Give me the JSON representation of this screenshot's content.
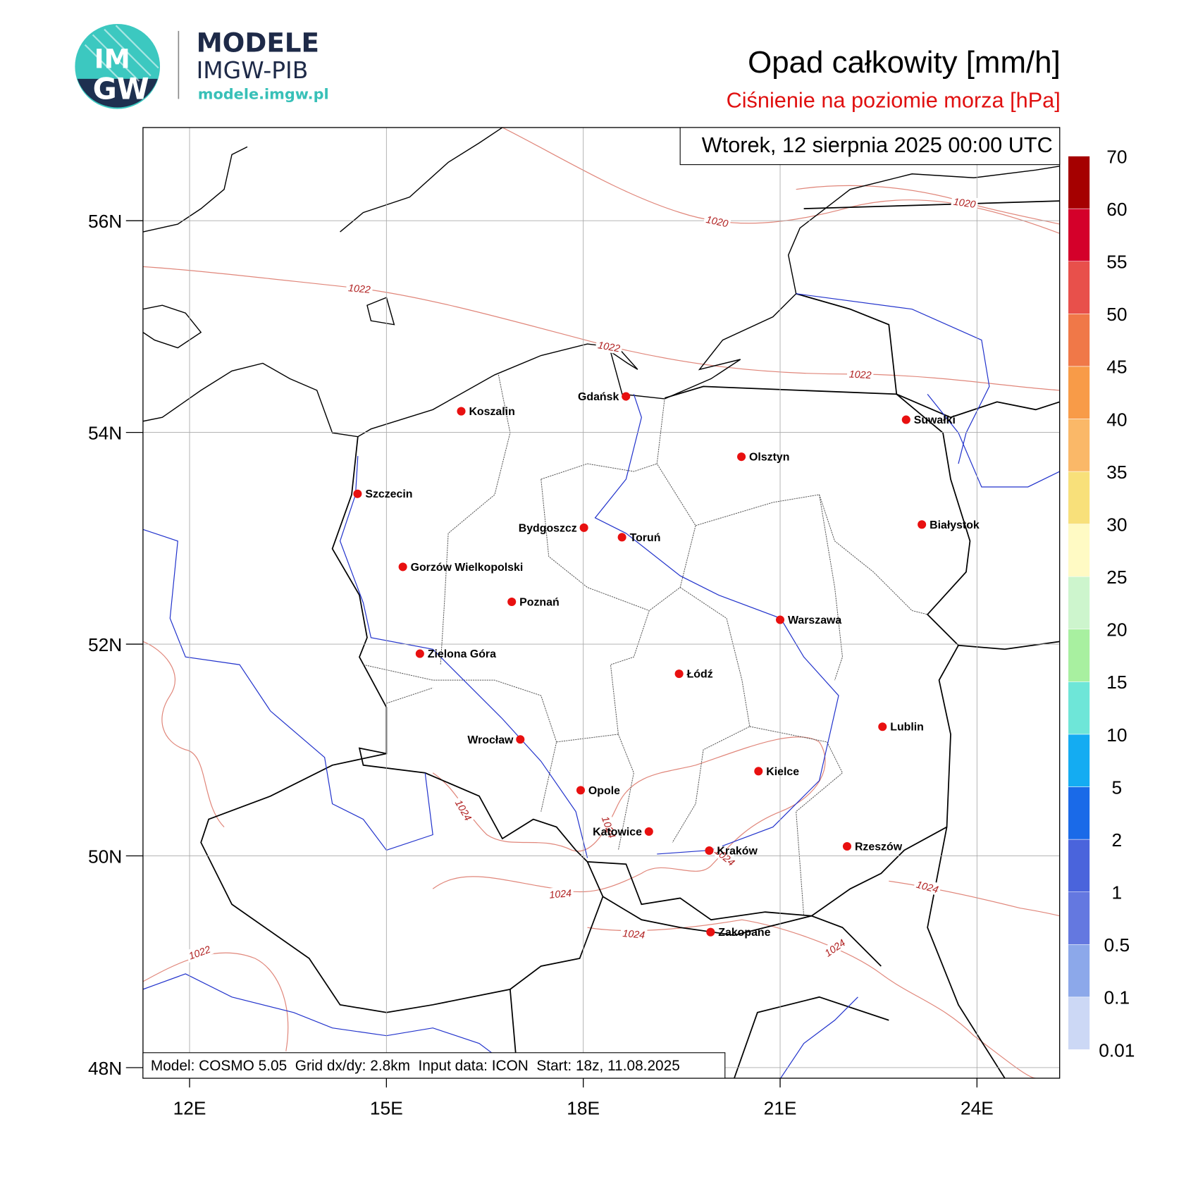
{
  "logo": {
    "badge_top": "IM",
    "badge_bottom": "GW",
    "name": "MODELE",
    "org": "IMGW-PIB",
    "url": "modele.imgw.pl"
  },
  "title": "Opad całkowity [mm/h]",
  "subtitle": "Ciśnienie na poziomie morza [hPa]",
  "valid_time": "Wtorek, 12 sierpnia 2025 00:00 UTC",
  "footer": "Model: COSMO 5.05  Grid dx/dy: 2.8km  Input data: ICON  Start: 18z, 11.08.2025",
  "map": {
    "xlim": [
      11.29,
      25.26
    ],
    "ylim": [
      47.9,
      56.88
    ],
    "xticks": [
      {
        "value": 12,
        "label": "12E"
      },
      {
        "value": 15,
        "label": "15E"
      },
      {
        "value": 18,
        "label": "18E"
      },
      {
        "value": 21,
        "label": "21E"
      },
      {
        "value": 24,
        "label": "24E"
      }
    ],
    "yticks": [
      {
        "value": 48,
        "label": "48N"
      },
      {
        "value": 50,
        "label": "50N"
      },
      {
        "value": 52,
        "label": "52N"
      },
      {
        "value": 54,
        "label": "54N"
      },
      {
        "value": 56,
        "label": "56N"
      }
    ],
    "grid": true
  },
  "cities": [
    {
      "name": "Gdańsk",
      "lon": 18.65,
      "lat": 54.34
    },
    {
      "name": "Koszalin",
      "lon": 16.14,
      "lat": 54.2
    },
    {
      "name": "Suwałki",
      "lon": 22.92,
      "lat": 54.12
    },
    {
      "name": "Olsztyn",
      "lon": 20.41,
      "lat": 53.77
    },
    {
      "name": "Szczecin",
      "lon": 14.56,
      "lat": 53.42
    },
    {
      "name": "Białystok",
      "lon": 23.16,
      "lat": 53.13
    },
    {
      "name": "Bydgoszcz",
      "lon": 18.01,
      "lat": 53.1
    },
    {
      "name": "Toruń",
      "lon": 18.59,
      "lat": 53.01
    },
    {
      "name": "Gorzów Wielkopolski",
      "lon": 15.25,
      "lat": 52.73
    },
    {
      "name": "Poznań",
      "lon": 16.91,
      "lat": 52.4
    },
    {
      "name": "Warszawa",
      "lon": 21.0,
      "lat": 52.23
    },
    {
      "name": "Zielona Góra",
      "lon": 15.51,
      "lat": 51.91
    },
    {
      "name": "Łódź",
      "lon": 19.46,
      "lat": 51.72
    },
    {
      "name": "Lublin",
      "lon": 22.56,
      "lat": 51.22
    },
    {
      "name": "Wrocław",
      "lon": 17.04,
      "lat": 51.1
    },
    {
      "name": "Kielce",
      "lon": 20.67,
      "lat": 50.8
    },
    {
      "name": "Opole",
      "lon": 17.96,
      "lat": 50.62
    },
    {
      "name": "Katowice",
      "lon": 19.0,
      "lat": 50.23
    },
    {
      "name": "Kraków",
      "lon": 19.92,
      "lat": 50.05
    },
    {
      "name": "Rzeszów",
      "lon": 22.02,
      "lat": 50.09
    },
    {
      "name": "Zakopane",
      "lon": 19.94,
      "lat": 49.28
    }
  ],
  "isobar_labels": [
    "1020",
    "1020",
    "1022",
    "1022",
    "1022",
    "1022",
    "1024",
    "1024",
    "1024",
    "1024",
    "1024",
    "1024",
    "1024"
  ],
  "colorbar": {
    "levels": [
      0.01,
      0.1,
      0.5,
      1,
      2,
      5,
      10,
      15,
      20,
      25,
      30,
      35,
      40,
      45,
      50,
      55,
      60,
      70
    ],
    "colors": [
      "#ccd8f5",
      "#8ca8ea",
      "#6478e0",
      "#4a64dc",
      "#1a6ae8",
      "#14acf2",
      "#6ee6d8",
      "#a8f0a0",
      "#cdf5cd",
      "#fffac4",
      "#f8e07a",
      "#fab868",
      "#f89b48",
      "#f07848",
      "#e8504b",
      "#d4002a",
      "#a50000",
      "#7d0000"
    ]
  }
}
